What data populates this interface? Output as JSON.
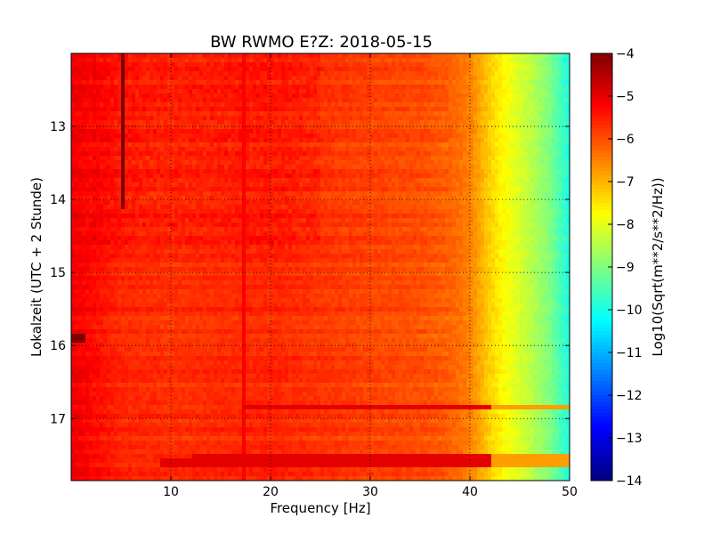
{
  "chart_data": {
    "type": "heatmap",
    "title": "BW RWMO E?Z: 2018-05-15",
    "xlabel": "Frequency [Hz]",
    "ylabel": "Lokalzeit (UTC + 2 Stunde)",
    "xlim": [
      0,
      50
    ],
    "ylim": [
      17.85,
      12.0
    ],
    "x_ticks": [
      10,
      20,
      30,
      40,
      50
    ],
    "y_ticks": [
      13,
      14,
      15,
      16,
      17
    ],
    "grid": true,
    "colorbar": {
      "label": "Log10(Sqrt(m**2/s**2/Hz))",
      "range": [
        -14,
        -4
      ],
      "ticks": [
        -4,
        -5,
        -6,
        -7,
        -8,
        -9,
        -10,
        -11,
        -12,
        -13,
        -14
      ],
      "colormap": "jet"
    },
    "spectral_profile": {
      "frequency_hz": [
        0,
        5,
        10,
        20,
        30,
        35,
        38,
        40,
        42,
        44,
        46,
        48,
        50
      ],
      "log10_amplitude": [
        -5.1,
        -5.6,
        -5.7,
        -5.6,
        -5.9,
        -6.0,
        -6.2,
        -6.5,
        -7.3,
        -7.9,
        -8.4,
        -9.0,
        -10.0
      ]
    },
    "features": [
      {
        "type": "band",
        "time": 16.85,
        "freq_range": [
          17,
          50
        ],
        "level": -5.0
      },
      {
        "type": "band",
        "time": 17.5,
        "freq_range": [
          12,
          50
        ],
        "level": -5.0
      },
      {
        "type": "band",
        "time": 17.62,
        "freq_range": [
          9,
          50
        ],
        "level": -5.0
      },
      {
        "type": "line",
        "freq": 5.1,
        "time_range": [
          12.0,
          14.15
        ],
        "level": -4.0
      },
      {
        "type": "line",
        "freq": 17.3,
        "time_range": [
          12.0,
          17.85
        ],
        "level": -5.2
      },
      {
        "type": "patch",
        "time": 15.9,
        "freq_range": [
          0,
          1.5
        ],
        "level": -4.0
      }
    ]
  }
}
